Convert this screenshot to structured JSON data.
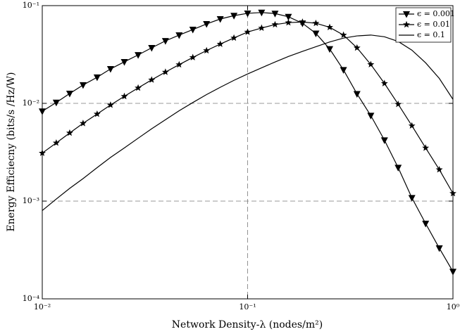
{
  "chart_data": {
    "type": "line",
    "xlabel": "Network Density-λ (nodes/m²)",
    "ylabel": "Energy Efficiecny (bits/s /Hz/W)",
    "xscale": "log",
    "yscale": "log",
    "x": [
      0.01,
      0.0117,
      0.0136,
      0.0158,
      0.0185,
      0.0215,
      0.0251,
      0.0293,
      0.0341,
      0.0398,
      0.0464,
      0.0541,
      0.0631,
      0.0736,
      0.0858,
      0.1,
      0.117,
      0.136,
      0.158,
      0.185,
      0.215,
      0.251,
      0.293,
      0.341,
      0.398,
      0.464,
      0.541,
      0.631,
      0.736,
      0.858,
      1.0
    ],
    "series": [
      {
        "name": "ϵ = 0.001",
        "color": "#000000",
        "marker": "triangle-down",
        "values": [
          0.0083,
          0.0102,
          0.0126,
          0.0154,
          0.0185,
          0.0225,
          0.0266,
          0.0313,
          0.037,
          0.0436,
          0.0499,
          0.0569,
          0.065,
          0.073,
          0.079,
          0.0834,
          0.085,
          0.083,
          0.077,
          0.066,
          0.052,
          0.036,
          0.022,
          0.0125,
          0.0075,
          0.0042,
          0.0022,
          0.00108,
          0.00059,
          0.00033,
          0.00019
        ]
      },
      {
        "name": "ϵ = 0.01",
        "color": "#000000",
        "marker": "star",
        "values": [
          0.0031,
          0.00394,
          0.00498,
          0.00625,
          0.00778,
          0.00962,
          0.0118,
          0.0144,
          0.0174,
          0.0209,
          0.0249,
          0.0295,
          0.0347,
          0.0404,
          0.0467,
          0.0537,
          0.059,
          0.064,
          0.067,
          0.068,
          0.066,
          0.06,
          0.05,
          0.037,
          0.025,
          0.016,
          0.0098,
          0.0059,
          0.0035,
          0.0021,
          0.0012
        ]
      },
      {
        "name": "ϵ = 0.1",
        "color": "#000000",
        "marker": "none",
        "values": [
          0.0008,
          0.00105,
          0.00135,
          0.0017,
          0.0022,
          0.0028,
          0.0035,
          0.0044,
          0.0055,
          0.0068,
          0.0084,
          0.0102,
          0.0123,
          0.0146,
          0.0172,
          0.02,
          0.0231,
          0.0265,
          0.0302,
          0.034,
          0.038,
          0.0425,
          0.0465,
          0.049,
          0.05,
          0.048,
          0.043,
          0.035,
          0.026,
          0.018,
          0.011
        ]
      }
    ],
    "xlim": [
      0.01,
      1
    ],
    "ylim": [
      0.0001,
      0.1
    ],
    "xticks": [
      {
        "value": 0.01,
        "label": "10⁻²"
      },
      {
        "value": 0.1,
        "label": "10⁻¹"
      },
      {
        "value": 1,
        "label": "10⁰"
      }
    ],
    "yticks": [
      {
        "value": 0.0001,
        "label": "10⁻⁴"
      },
      {
        "value": 0.001,
        "label": "10⁻³"
      },
      {
        "value": 0.01,
        "label": "10⁻²"
      },
      {
        "value": 0.1,
        "label": "10⁻¹"
      }
    ],
    "grid": true,
    "legend": "upper right"
  }
}
